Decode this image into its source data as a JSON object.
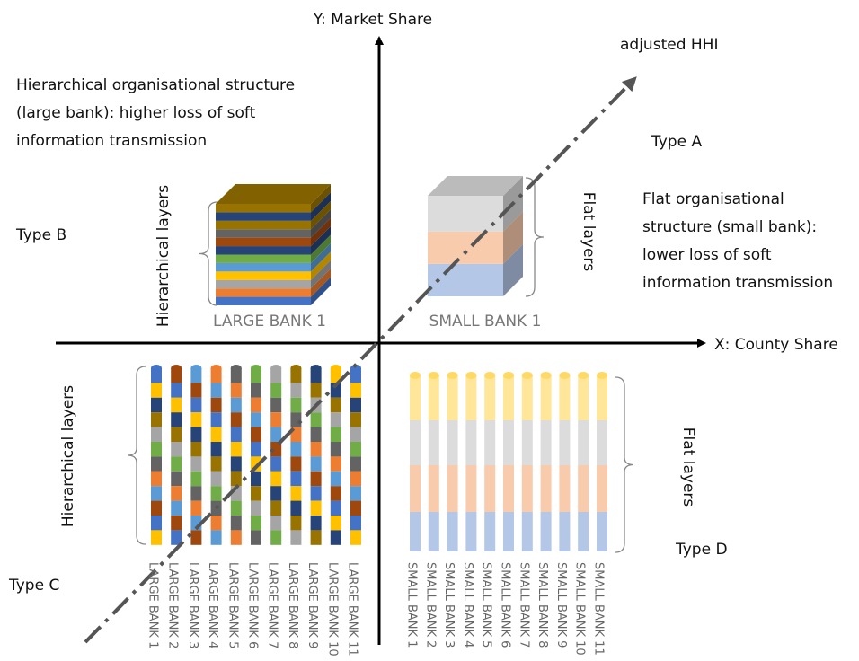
{
  "axes": {
    "y_label": "Y: Market Share",
    "x_label": "X: County Share",
    "diagonal_label": "adjusted HHI"
  },
  "types": {
    "a": "Type A",
    "b": "Type B",
    "c": "Type C",
    "d": "Type D"
  },
  "notes": {
    "large": [
      "Hierarchical organisational structure",
      "(large bank): higher loss of soft",
      "information transmission"
    ],
    "small": [
      "Flat organisational",
      "structure (small bank):",
      "lower loss of soft",
      "information transmission"
    ]
  },
  "cubes": {
    "large": {
      "label": "LARGE BANK 1",
      "brace": "Hierarchical layers"
    },
    "small": {
      "label": "SMALL BANK 1",
      "brace": "Flat layers"
    }
  },
  "columns": {
    "large": {
      "brace": "Hierarchical layers",
      "banks": [
        "LARGE BANK 1",
        "LARGE BANK 2",
        "LARGE BANK 3",
        "LARGE BANK 4",
        "LARGE BANK 5",
        "LARGE BANK 6",
        "LARGE BANK 7",
        "LARGE BANK 8",
        "LARGE BANK 9",
        "LARGE BANK 10",
        "LARGE BANK 11"
      ]
    },
    "small": {
      "brace": "Flat layers",
      "banks": [
        "SMALL BANK 1",
        "SMALL BANK 2",
        "SMALL BANK 3",
        "SMALL BANK 4",
        "SMALL BANK 5",
        "SMALL BANK 6",
        "SMALL BANK 7",
        "SMALL BANK 8",
        "SMALL BANK 9",
        "SMALL BANK 10",
        "SMALL BANK 11"
      ]
    }
  }
}
